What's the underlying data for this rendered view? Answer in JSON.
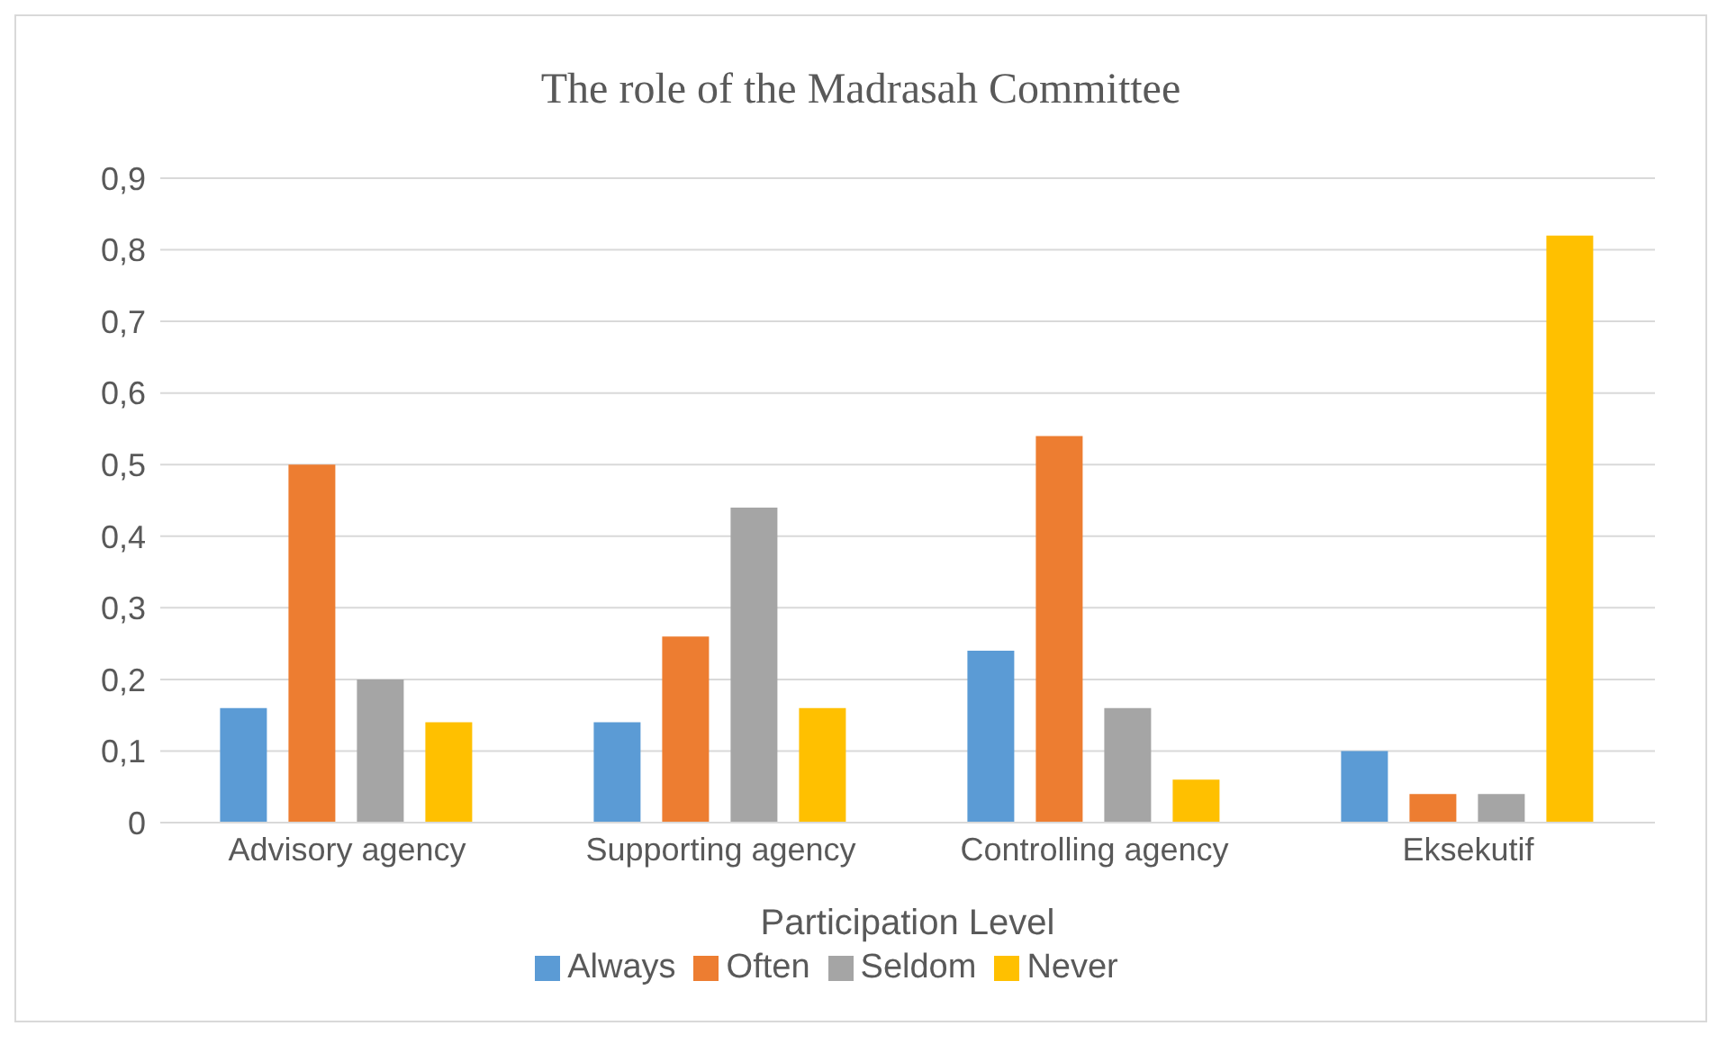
{
  "chart_data": {
    "type": "bar",
    "title": "The role of the Madrasah Committee",
    "xlabel": "Participation Level",
    "categories": [
      "Advisory agency",
      "Supporting agency",
      "Controlling agency",
      "Eksekutif"
    ],
    "series": [
      {
        "name": "Always",
        "color": "#5b9bd5",
        "values": [
          0.16,
          0.14,
          0.24,
          0.1
        ]
      },
      {
        "name": "Often",
        "color": "#ed7d31",
        "values": [
          0.5,
          0.26,
          0.54,
          0.04
        ]
      },
      {
        "name": "Seldom",
        "color": "#a5a5a5",
        "values": [
          0.2,
          0.44,
          0.16,
          0.04
        ]
      },
      {
        "name": "Never",
        "color": "#ffc000",
        "values": [
          0.14,
          0.16,
          0.06,
          0.82
        ]
      }
    ],
    "ylim": [
      0,
      0.9
    ],
    "yticks": [
      {
        "value": 0,
        "label": "0"
      },
      {
        "value": 0.1,
        "label": "0,1"
      },
      {
        "value": 0.2,
        "label": "0,2"
      },
      {
        "value": 0.3,
        "label": "0,3"
      },
      {
        "value": 0.4,
        "label": "0,4"
      },
      {
        "value": 0.5,
        "label": "0,5"
      },
      {
        "value": 0.6,
        "label": "0,6"
      },
      {
        "value": 0.7,
        "label": "0,7"
      },
      {
        "value": 0.8,
        "label": "0,8"
      },
      {
        "value": 0.9,
        "label": "0,9"
      }
    ],
    "grid": "y",
    "legend": "bottom"
  }
}
